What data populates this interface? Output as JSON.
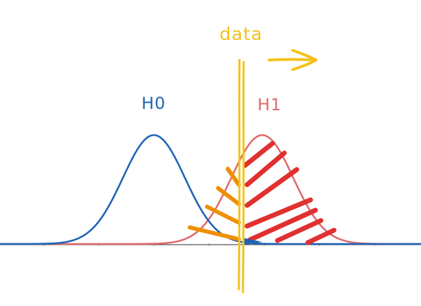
{
  "labels": {
    "h0": "H0",
    "h1": "H1",
    "data": "data"
  },
  "colors": {
    "h0": "#1f63b8",
    "h1": "#e06a6a",
    "data": "#f3c21b",
    "beta_hatch": "#ef8f00",
    "power_hatch": "#e03030",
    "axis": "#555555"
  },
  "icons": {
    "direction": "arrow-right-icon"
  }
}
